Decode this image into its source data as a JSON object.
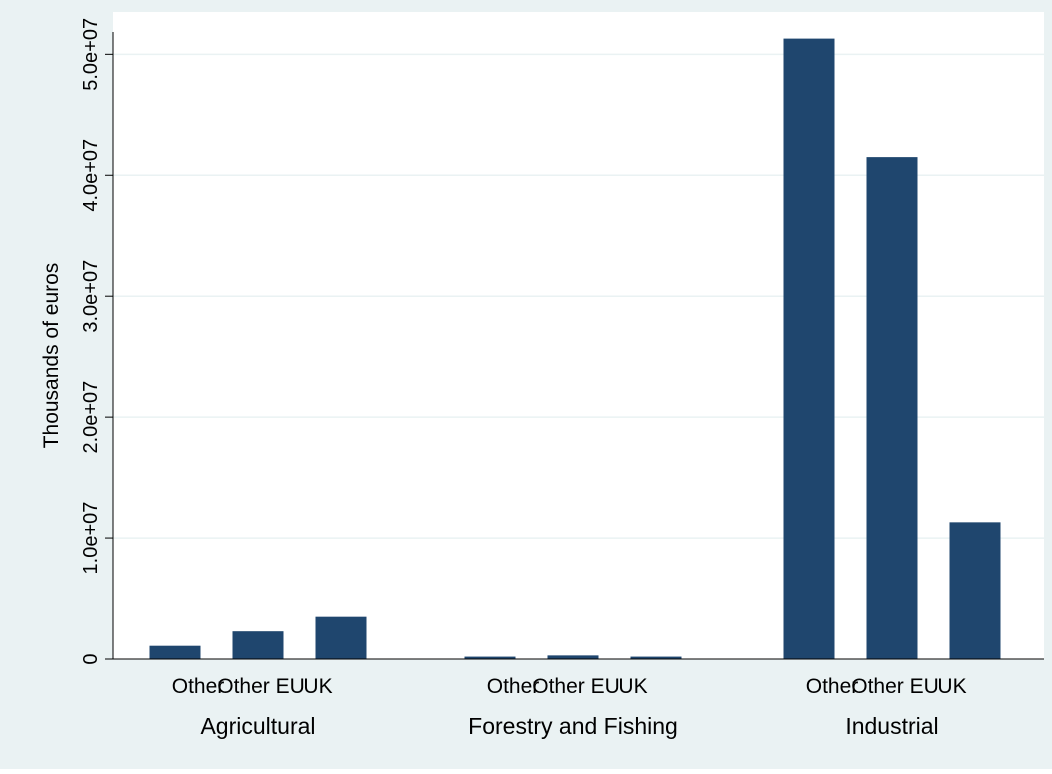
{
  "chart_data": {
    "type": "bar",
    "title": "",
    "ylabel": "Thousands of euros",
    "xlabel": "",
    "ylim": [
      0,
      53500000
    ],
    "yticks": [
      0,
      10000000,
      20000000,
      30000000,
      40000000,
      50000000
    ],
    "ytick_labels": [
      "0",
      "1.0e+07",
      "2.0e+07",
      "3.0e+07",
      "4.0e+07",
      "5.0e+07"
    ],
    "grid": true,
    "legend": "none",
    "groups": [
      {
        "label": "Agricultural",
        "categories": [
          "Other",
          "Other EU",
          "UK"
        ],
        "values": [
          1100000,
          2300000,
          3500000
        ]
      },
      {
        "label": "Forestry and Fishing",
        "categories": [
          "Other",
          "Other EU",
          "UK"
        ],
        "values": [
          200000,
          300000,
          200000
        ]
      },
      {
        "label": "Industrial",
        "categories": [
          "Other",
          "Other EU",
          "UK"
        ],
        "values": [
          51300000,
          41500000,
          11300000
        ]
      }
    ],
    "colors": {
      "bar": "#1f466e",
      "plot_background": "#ffffff",
      "outer_background": "#eaf2f3",
      "grid": "#eaf2f3"
    }
  }
}
